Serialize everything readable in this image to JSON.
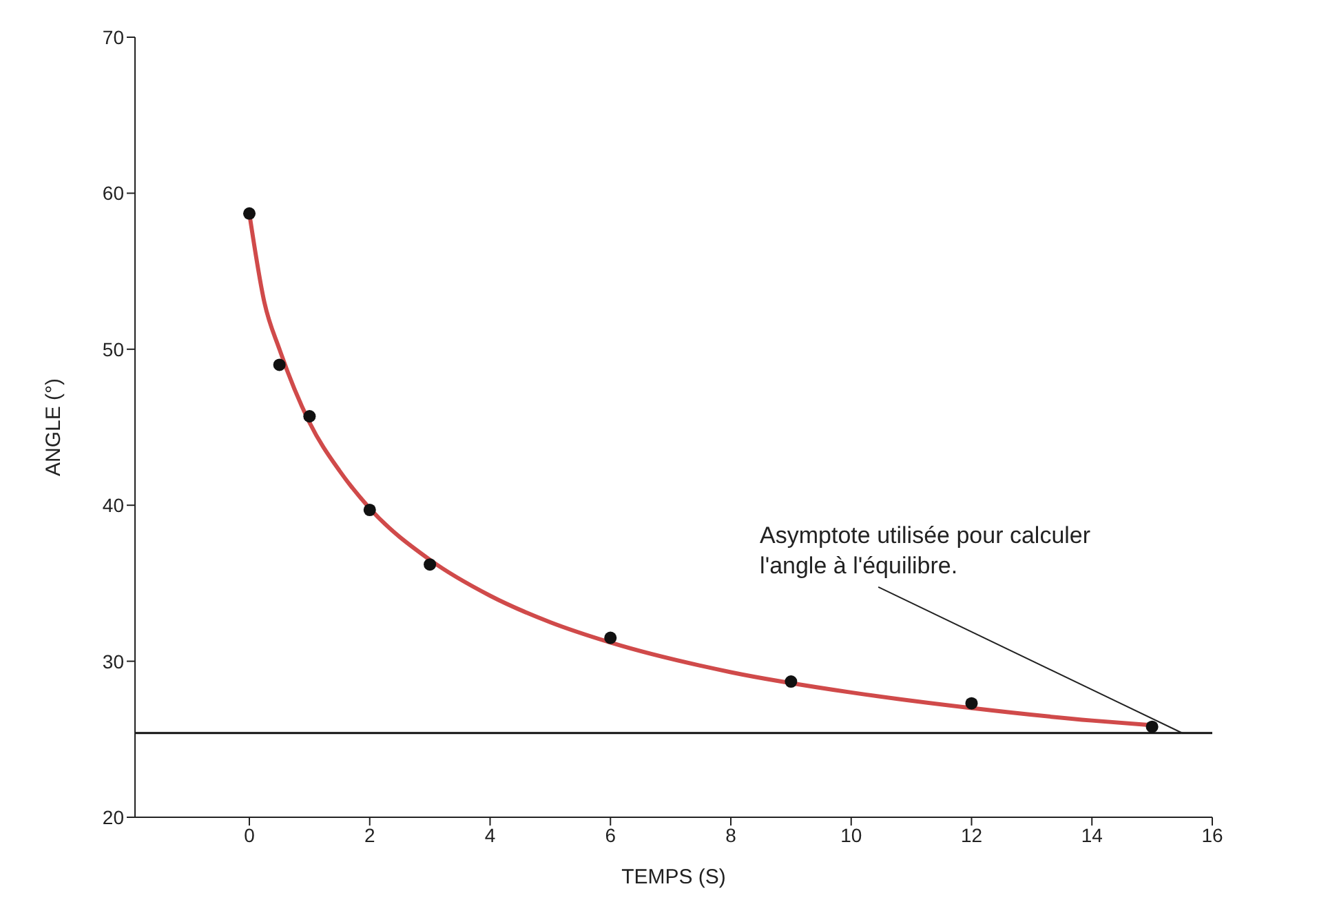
{
  "chart_data": {
    "type": "scatter",
    "xlabel": "TEMPS (S)",
    "ylabel": "ANGLE (°)",
    "xlim": [
      -1.9,
      16
    ],
    "xticks": [
      0,
      2,
      4,
      6,
      8,
      10,
      12,
      14,
      16
    ],
    "ylim": [
      20,
      70
    ],
    "yticks": [
      20,
      30,
      40,
      50,
      60,
      70
    ],
    "grid": false,
    "series": [
      {
        "marker": "circle",
        "color": "#111111",
        "x": [
          0,
          0.5,
          1,
          2,
          3,
          6,
          9,
          12,
          15
        ],
        "values": [
          58.7,
          49.0,
          45.7,
          39.7,
          36.2,
          31.5,
          28.7,
          27.3,
          25.8
        ]
      },
      {
        "type": "line",
        "color": "#d04a4a",
        "x": [
          0,
          0.25,
          0.5,
          1,
          1.5,
          2,
          3,
          4,
          5,
          6,
          8,
          10,
          12,
          14,
          15
        ],
        "values": [
          58.7,
          53.0,
          50.0,
          45.3,
          42.2,
          39.8,
          36.5,
          34.2,
          32.5,
          31.2,
          29.3,
          28.0,
          27.0,
          26.2,
          25.9
        ]
      }
    ],
    "ref_lines": [
      {
        "axis": "y",
        "value": 25.4,
        "color": "#111111"
      }
    ],
    "annotations": [
      {
        "text": "Asymptote utilisée pour calculer l'angle à l'équilibre.",
        "x": 15.5,
        "y": 25.4
      }
    ]
  }
}
